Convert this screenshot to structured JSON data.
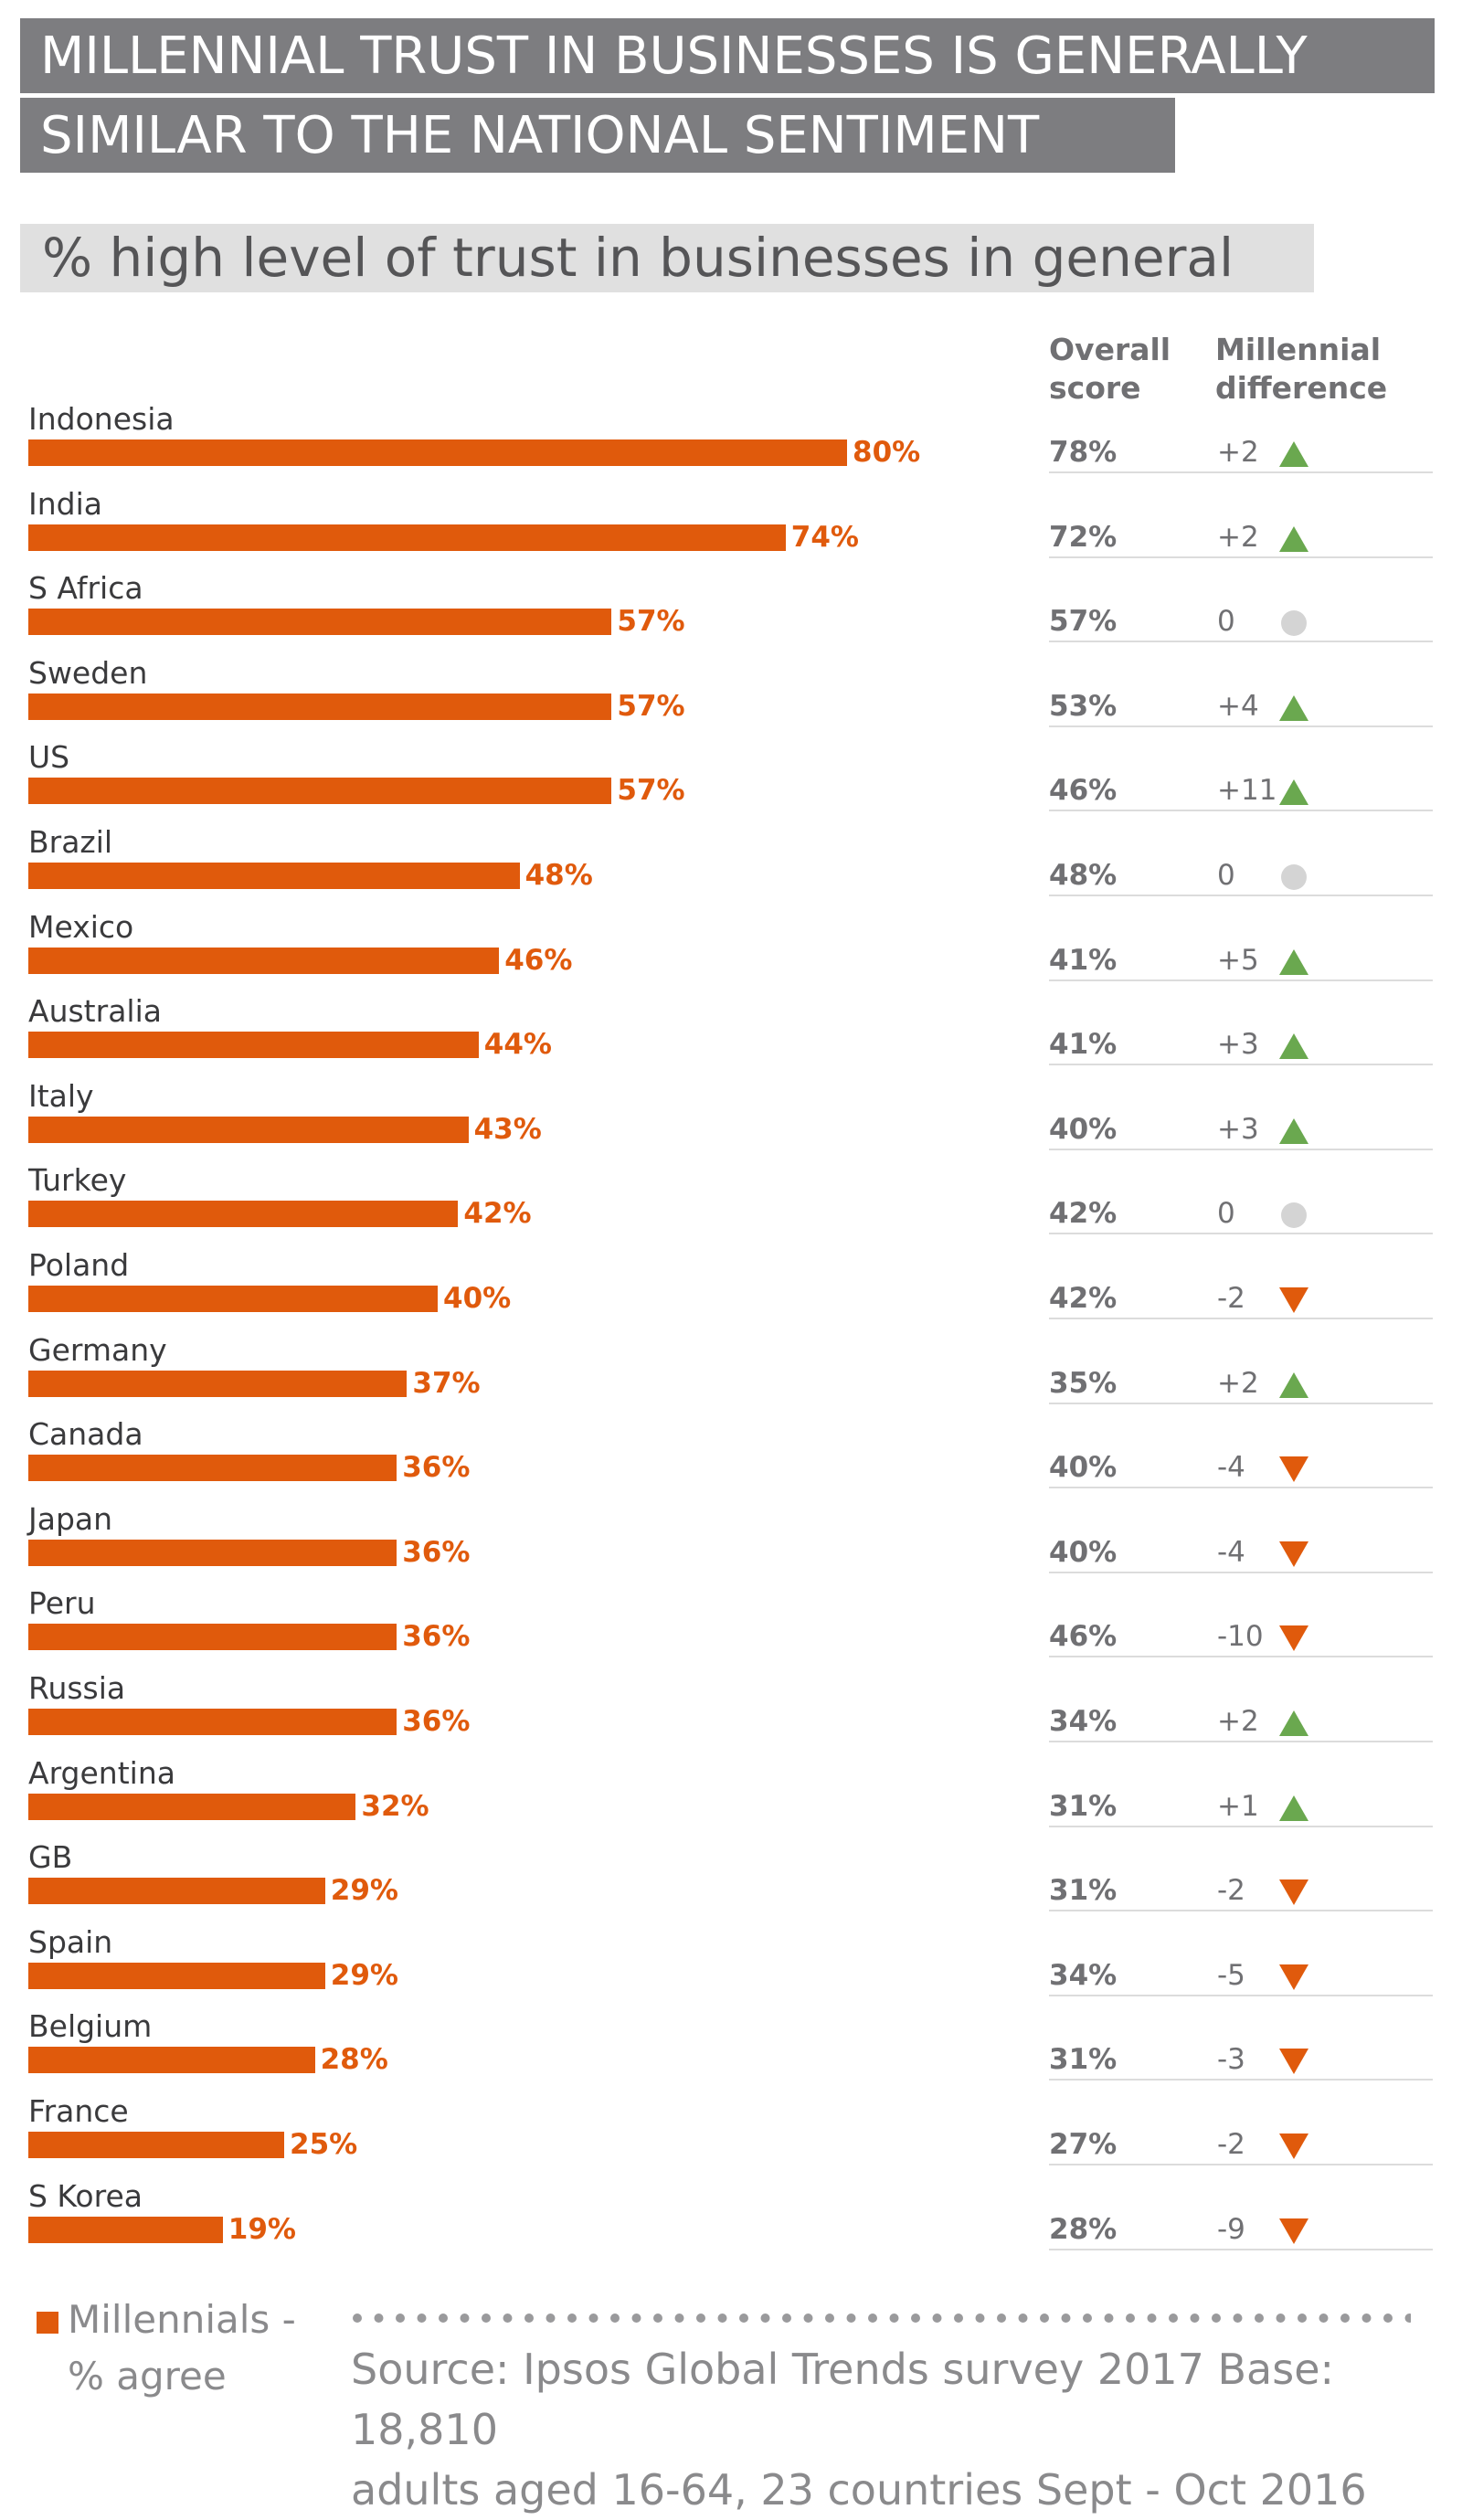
{
  "title": {
    "line1": "MILLENNIAL TRUST IN BUSINESSES IS GENERALLY",
    "line2": "SIMILAR TO THE NATIONAL SENTIMENT"
  },
  "subtitle": "% high level of trust in businesses in general",
  "headers": {
    "overall": [
      "Overall",
      "score"
    ],
    "difference": [
      "Millennial",
      "difference"
    ]
  },
  "colors": {
    "bar": "#e05a0c",
    "up": "#6aa84f",
    "down": "#e05a0c",
    "neutral": "#d4d4d4"
  },
  "chart_data": {
    "type": "bar",
    "title": "% high level of trust in businesses in general",
    "series_name": "Millennials - % agree",
    "categories": [
      "Indonesia",
      "India",
      "S Africa",
      "Sweden",
      "US",
      "Brazil",
      "Mexico",
      "Australia",
      "Italy",
      "Turkey",
      "Poland",
      "Germany",
      "Canada",
      "Japan",
      "Peru",
      "Russia",
      "Argentina",
      "GB",
      "Spain",
      "Belgium",
      "France",
      "S Korea"
    ],
    "values": [
      80,
      74,
      57,
      57,
      57,
      48,
      46,
      44,
      43,
      42,
      40,
      37,
      36,
      36,
      36,
      36,
      32,
      29,
      29,
      28,
      25,
      19
    ],
    "value_labels": [
      "80%",
      "74%",
      "57%",
      "57%",
      "57%",
      "48%",
      "46%",
      "44%",
      "43%",
      "42%",
      "40%",
      "37%",
      "36%",
      "36%",
      "36%",
      "36%",
      "32%",
      "29%",
      "29%",
      "28%",
      "25%",
      "19%"
    ],
    "overall_scores": [
      "78%",
      "72%",
      "57%",
      "53%",
      "46%",
      "48%",
      "41%",
      "41%",
      "40%",
      "42%",
      "42%",
      "35%",
      "40%",
      "40%",
      "46%",
      "34%",
      "31%",
      "31%",
      "34%",
      "31%",
      "27%",
      "28%"
    ],
    "millennial_difference": [
      "+2",
      "+2",
      "0",
      "+4",
      "+11",
      "0",
      "+5",
      "+3",
      "+3",
      "0",
      "-2",
      "+2",
      "-4",
      "-4",
      "-10",
      "+2",
      "+1",
      "-2",
      "-5",
      "-3",
      "-2",
      "-9"
    ],
    "difference_direction": [
      "up",
      "up",
      "neutral",
      "up",
      "up",
      "neutral",
      "up",
      "up",
      "up",
      "neutral",
      "down",
      "up",
      "down",
      "down",
      "down",
      "up",
      "up",
      "down",
      "down",
      "down",
      "down",
      "down"
    ],
    "xlim": [
      0,
      100
    ]
  },
  "legend": {
    "line1": "Millennials -",
    "line2": "% agree"
  },
  "source": {
    "line1": "Source: Ipsos Global Trends survey 2017  Base: 18,810",
    "line2": "adults aged 16-64, 23 countries Sept - Oct 2016"
  }
}
